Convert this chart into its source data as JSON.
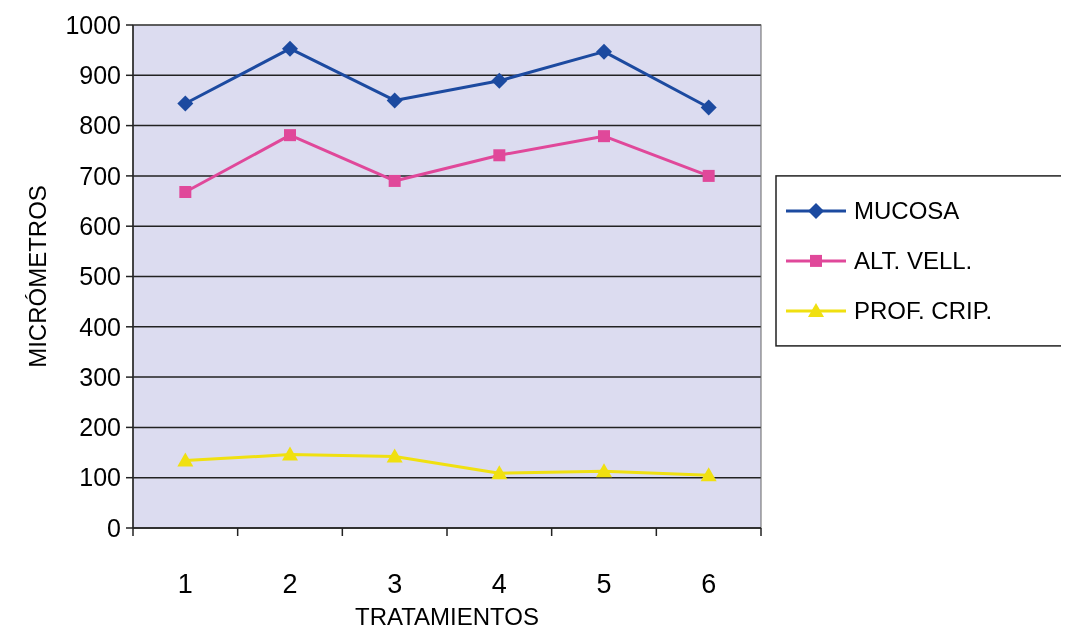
{
  "chart_data": {
    "type": "line",
    "xlabel": "TRATAMIENTOS",
    "ylabel": "MICRÓMETROS",
    "categories": [
      "1",
      "2",
      "3",
      "4",
      "5",
      "6"
    ],
    "series": [
      {
        "name": "MUCOSA",
        "color": "#1c4aa0",
        "marker": "diamond",
        "values": [
          844,
          953,
          850,
          889,
          947,
          836
        ]
      },
      {
        "name": "ALT. VELL.",
        "color": "#e0489a",
        "marker": "square",
        "values": [
          668,
          781,
          690,
          741,
          779,
          700
        ]
      },
      {
        "name": "PROF. CRIP.",
        "color": "#f0e010",
        "marker": "triangle",
        "values": [
          134,
          146,
          142,
          109,
          113,
          105
        ]
      }
    ],
    "ylim": [
      0,
      1000
    ],
    "yticks": [
      0,
      100,
      200,
      300,
      400,
      500,
      600,
      700,
      800,
      900,
      1000
    ],
    "grid": "y",
    "legend": "right",
    "line_style": "solid"
  }
}
